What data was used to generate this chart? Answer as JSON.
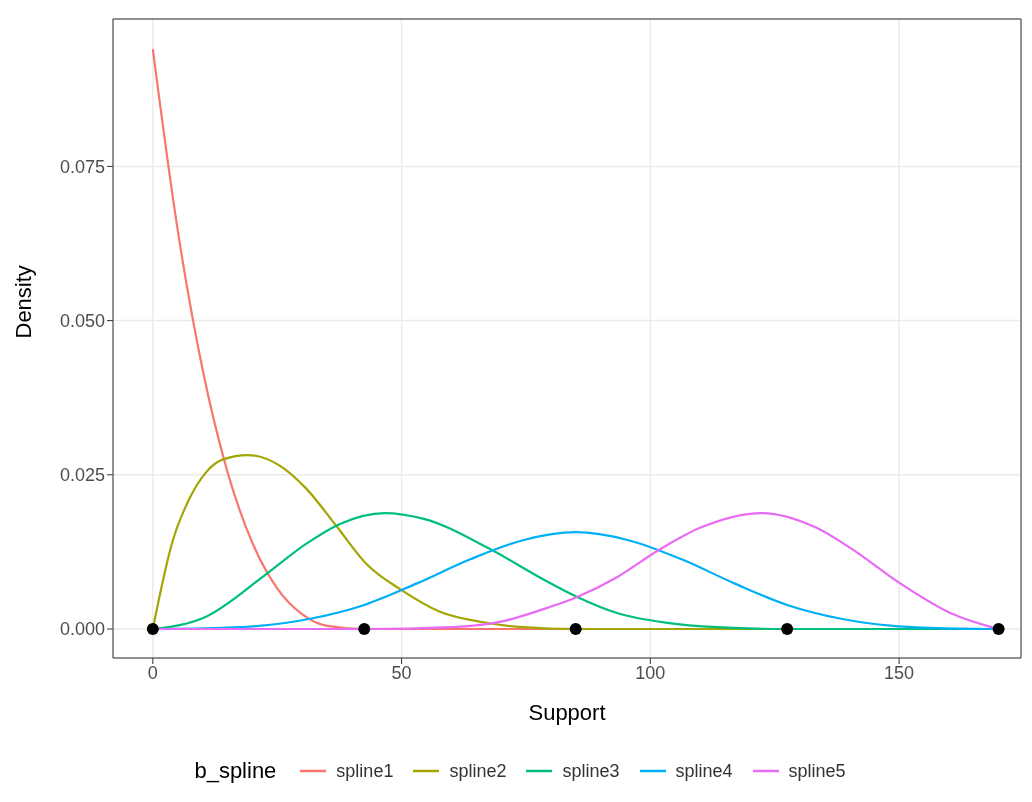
{
  "chart_data": {
    "type": "line",
    "xlabel": "Support",
    "ylabel": "Density",
    "legend_title": "b_spline",
    "xlim": [
      -8,
      174.5
    ],
    "ylim": [
      -0.0047,
      0.0989
    ],
    "xticks": [
      0,
      50,
      100,
      150
    ],
    "yticks": [
      {
        "value": 0,
        "label": "0.000"
      },
      {
        "value": 0.025,
        "label": "0.025"
      },
      {
        "value": 0.05,
        "label": "0.050"
      },
      {
        "value": 0.075,
        "label": "0.075"
      }
    ],
    "grid": true,
    "legend": "bottom",
    "marker": "none",
    "line_style": "solid",
    "series": [
      {
        "name": "spline1",
        "color": "#f8766d",
        "x": [
          0,
          5,
          10,
          15,
          20,
          25,
          30,
          35,
          42.5,
          85,
          127.5,
          170
        ],
        "values": [
          0.094,
          0.0647,
          0.0421,
          0.0255,
          0.014,
          0.0066,
          0.0024,
          0.0005,
          0,
          0,
          0,
          0
        ]
      },
      {
        "name": "spline2",
        "color": "#a3a500",
        "x": [
          0,
          4,
          7.4,
          10.7,
          14.1,
          19.1,
          25.5,
          30.8,
          36.9,
          43,
          50,
          57.7,
          66.4,
          74.4,
          85,
          127.5,
          170
        ],
        "values": [
          0,
          0.0143,
          0.0212,
          0.0254,
          0.0275,
          0.0282,
          0.0265,
          0.0228,
          0.0167,
          0.0105,
          0.0063,
          0.0028,
          0.0011,
          0.0003,
          0,
          0,
          0
        ]
      },
      {
        "name": "spline3",
        "color": "#00bf7d",
        "x": [
          0,
          10.7,
          22.8,
          30.8,
          37.5,
          46.6,
          54.3,
          67.7,
          77.7,
          85.3,
          93.3,
          103.4,
          113.4,
          127.5,
          170
        ],
        "values": [
          0,
          0.002,
          0.0089,
          0.0138,
          0.017,
          0.0188,
          0.0179,
          0.013,
          0.0084,
          0.0052,
          0.0026,
          0.001,
          0.0003,
          0,
          0
        ]
      },
      {
        "name": "spline4",
        "color": "#00b0f6",
        "x": [
          0,
          10.6,
          21.3,
          31.9,
          42.5,
          53.1,
          63.8,
          74.4,
          85,
          95.6,
          106.3,
          116.9,
          127.5,
          138.1,
          148.8,
          159.4,
          170
        ],
        "values": [
          0,
          0.0001,
          0.0005,
          0.0017,
          0.0039,
          0.0074,
          0.0113,
          0.0144,
          0.0157,
          0.0144,
          0.0113,
          0.0074,
          0.0039,
          0.0017,
          0.0005,
          0.0001,
          0
        ]
      },
      {
        "name": "spline5",
        "color": "#e76bf3",
        "x": [
          0,
          42.5,
          60,
          70,
          79.9,
          85.3,
          93.3,
          101.7,
          110,
          122.4,
          133.4,
          140.1,
          150.2,
          160.3,
          170
        ],
        "values": [
          0,
          0,
          0.0003,
          0.0012,
          0.0036,
          0.0052,
          0.0084,
          0.0128,
          0.0164,
          0.0188,
          0.0164,
          0.0132,
          0.0074,
          0.0026,
          0
        ]
      },
      {
        "type": "scatter",
        "color": "#000000",
        "marker": "circle",
        "x": [
          0,
          42.5,
          85,
          127.5,
          170
        ],
        "values": [
          0,
          0,
          0,
          0,
          0
        ]
      }
    ]
  }
}
